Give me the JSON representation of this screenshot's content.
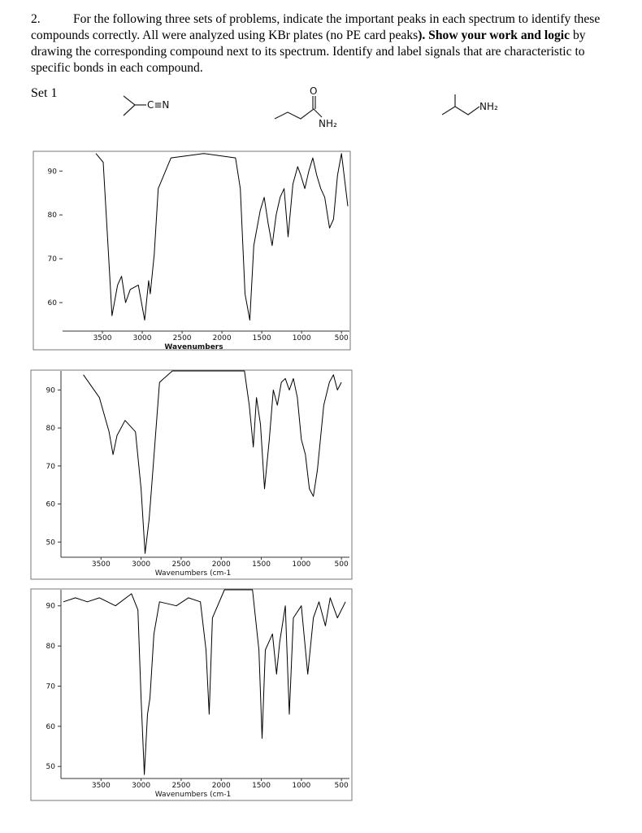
{
  "question": {
    "number": "2.",
    "text": [
      "For the following three sets of problems, indicate the important peaks in each spectrum to identify these compounds correctly. All were analyzed using KBr plates (no PE card peaks",
      "). Show your work and logic",
      " by drawing the corresponding compound next to its spectrum. Identify and label signals that are characteristic to specific bonds in each compound."
    ]
  },
  "set_label": "Set 1",
  "molecules": [
    {
      "group": "C≡N"
    },
    {
      "carbonyl": "O",
      "group": "NH₂"
    },
    {
      "group": "NH₂"
    }
  ],
  "chart_data": [
    {
      "type": "line",
      "x_label": "Wavenumbers",
      "color": "#000000",
      "xlim": [
        4000,
        400
      ],
      "ylim": [
        53.5,
        94.5
      ],
      "xticks": [
        3500,
        3000,
        2500,
        2000,
        1500,
        1000,
        500
      ],
      "yticks": [
        60,
        70,
        80,
        90
      ],
      "x": [
        3582,
        3490,
        3430,
        3380,
        3310,
        3260,
        3210,
        3150,
        3050,
        2970,
        2920,
        2900,
        2850,
        2800,
        2640,
        2230,
        1830,
        1770,
        1710,
        1650,
        1600,
        1520,
        1470,
        1420,
        1370,
        1320,
        1270,
        1220,
        1170,
        1110,
        1050,
        1010,
        960,
        910,
        860,
        810,
        760,
        710,
        650,
        600,
        550,
        500,
        420
      ],
      "values": [
        94,
        92,
        73,
        57,
        64,
        66,
        60,
        63,
        64,
        56,
        65,
        62,
        71,
        86,
        93,
        94,
        93,
        86,
        62,
        56,
        73,
        81,
        84,
        78,
        73,
        80,
        84,
        86,
        75,
        87,
        91,
        89,
        86,
        90,
        93,
        89,
        86,
        84,
        77,
        79,
        89,
        94,
        82
      ]
    },
    {
      "type": "line",
      "x_label": "Wavenumbers (cm-1",
      "color": "#000000",
      "xlim": [
        4000,
        400
      ],
      "ylim": [
        46,
        95
      ],
      "xticks": [
        3500,
        3000,
        2500,
        2000,
        1500,
        1000,
        500
      ],
      "yticks": [
        50,
        60,
        70,
        80,
        90
      ],
      "x": [
        3720,
        3520,
        3400,
        3350,
        3300,
        3200,
        3070,
        3000,
        2950,
        2900,
        2870,
        2770,
        2610,
        1710,
        1650,
        1600,
        1560,
        1510,
        1460,
        1400,
        1350,
        1300,
        1250,
        1200,
        1150,
        1100,
        1050,
        1000,
        950,
        900,
        850,
        800,
        720,
        650,
        600,
        550,
        500
      ],
      "values": [
        94,
        88,
        79,
        73,
        78,
        82,
        79,
        64,
        47,
        56,
        64,
        92,
        95,
        95,
        86,
        75,
        88,
        81,
        64,
        77,
        90,
        86,
        92,
        93,
        90,
        93,
        88,
        77,
        73,
        64,
        62,
        69,
        86,
        92,
        94,
        90,
        92
      ]
    },
    {
      "type": "line",
      "x_label": "Wavenumbers (cm-1",
      "color": "#000000",
      "xlim": [
        4000,
        400
      ],
      "ylim": [
        47,
        94
      ],
      "xticks": [
        3500,
        3000,
        2500,
        2000,
        1500,
        1000,
        500
      ],
      "yticks": [
        50,
        60,
        70,
        80,
        90
      ],
      "x": [
        3970,
        3820,
        3670,
        3520,
        3320,
        3120,
        3040,
        3000,
        2960,
        2920,
        2890,
        2840,
        2770,
        2560,
        2410,
        2260,
        2190,
        2150,
        2110,
        1960,
        1610,
        1530,
        1490,
        1450,
        1360,
        1310,
        1270,
        1200,
        1150,
        1100,
        1000,
        920,
        850,
        780,
        700,
        640,
        550,
        450
      ],
      "values": [
        91,
        92,
        91,
        92,
        90,
        93,
        89,
        67,
        48,
        63,
        67,
        83,
        91,
        90,
        92,
        91,
        79,
        63,
        87,
        94,
        94,
        79,
        57,
        79,
        83,
        73,
        81,
        90,
        63,
        87,
        90,
        73,
        87,
        91,
        85,
        92,
        87,
        91
      ]
    }
  ]
}
